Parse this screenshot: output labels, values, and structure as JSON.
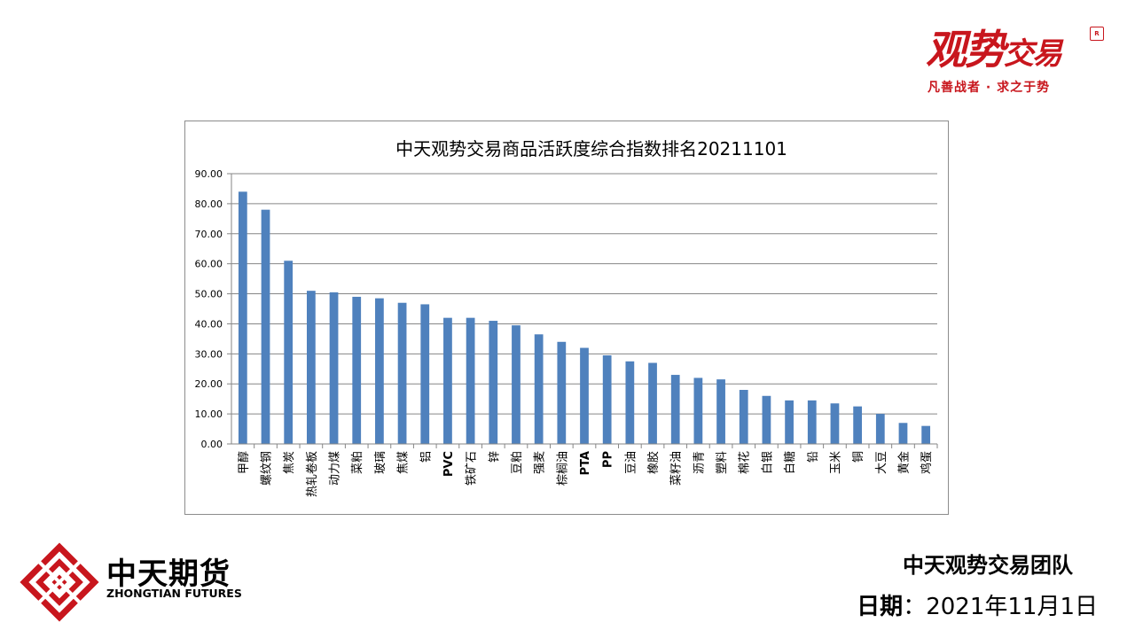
{
  "brand": {
    "title_main": "观势",
    "title_small": "交易",
    "seal_text": "R",
    "slogan": "凡善战者 · 求之于势"
  },
  "footer": {
    "company_cn": "中天期货",
    "company_en": "ZHONGTIAN FUTURES",
    "team": "中天观势交易团队",
    "date_label": "日期",
    "date_sep": "：",
    "date_value": "2021年11月1日"
  },
  "colors": {
    "bar": "#4f81bd",
    "grid": "#868686",
    "brand_red": "#c8161d"
  },
  "chart_data": {
    "type": "bar",
    "title": "中天观势交易商品活跃度综合指数排名20211101",
    "xlabel": "",
    "ylabel": "",
    "ylim": [
      0,
      90
    ],
    "yticks": [
      "0.00",
      "10.00",
      "20.00",
      "30.00",
      "40.00",
      "50.00",
      "60.00",
      "70.00",
      "80.00",
      "90.00"
    ],
    "grid": true,
    "legend": "none",
    "categories": [
      "甲醇",
      "螺纹钢",
      "焦炭",
      "热轧卷板",
      "动力煤",
      "菜粕",
      "玻璃",
      "焦煤",
      "铝",
      "PVC",
      "铁矿石",
      "锌",
      "豆粕",
      "强麦",
      "棕榈油",
      "PTA",
      "PP",
      "豆油",
      "橡胶",
      "菜籽油",
      "沥青",
      "塑料",
      "棉花",
      "白银",
      "白糖",
      "铅",
      "玉米",
      "铜",
      "大豆",
      "黄金",
      "鸡蛋"
    ],
    "values": [
      84.0,
      78.0,
      61.0,
      51.0,
      50.5,
      49.0,
      48.5,
      47.0,
      46.5,
      42.0,
      42.0,
      41.0,
      39.5,
      36.5,
      34.0,
      32.0,
      29.5,
      27.5,
      27.0,
      23.0,
      22.0,
      21.5,
      18.0,
      16.0,
      14.5,
      14.5,
      13.5,
      12.5,
      10.0,
      7.0,
      6.0
    ]
  }
}
